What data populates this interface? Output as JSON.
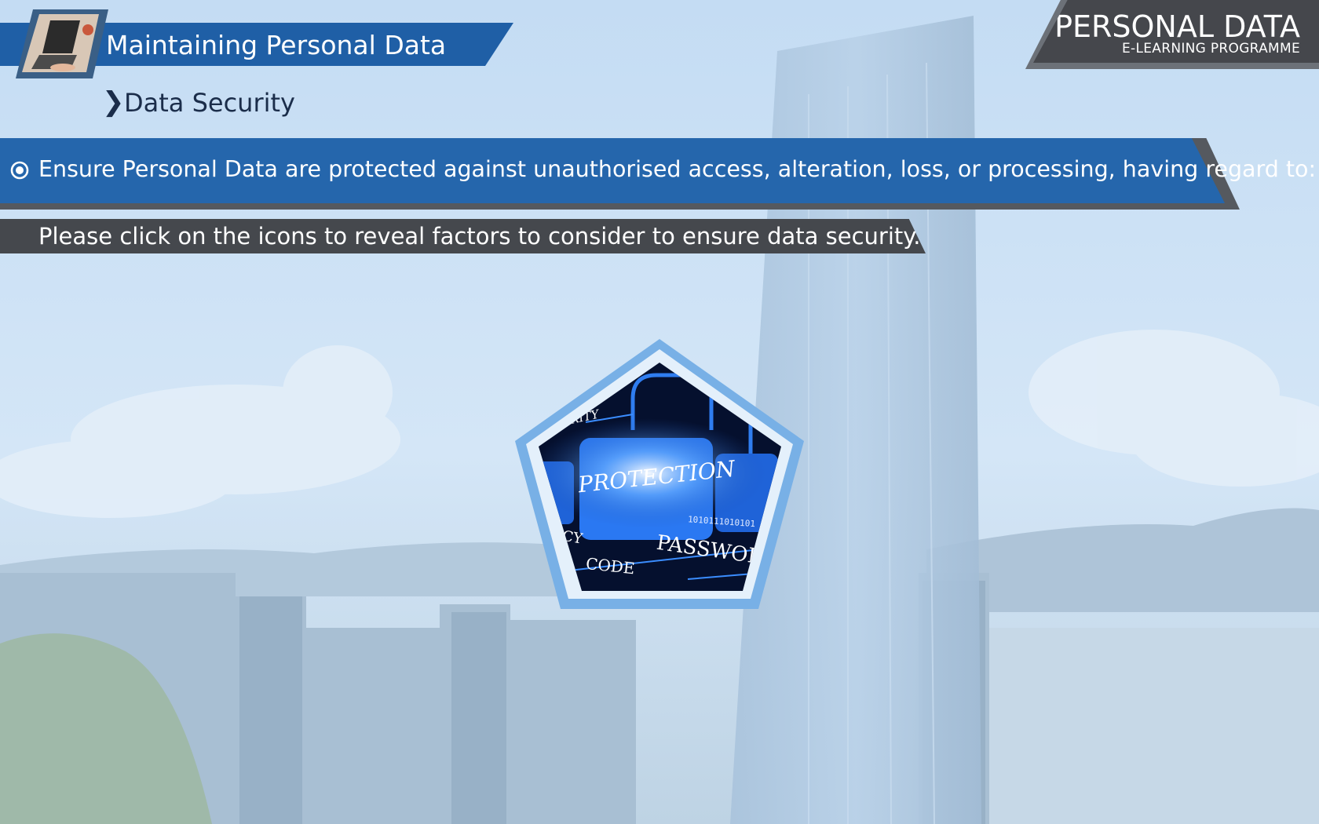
{
  "header": {
    "module_title": "Maintaining Personal Data",
    "section_title": "Data Security"
  },
  "brand": {
    "title": "PERSONAL DATA",
    "subtitle": "E-LEARNING PROGRAMME"
  },
  "content": {
    "principle": "Ensure Personal Data are protected against unauthorised access, alteration, loss, or processing, having regard to:",
    "instruction": "Please click on the icons to reveal factors to consider to ensure data security."
  },
  "icon": {
    "words": [
      "PROTECTION",
      "PASSWOR",
      "CODE",
      "RITY",
      "CY",
      "1010111010101"
    ]
  },
  "colors": {
    "title_banner": "#1f5fa6",
    "principle_bar": "#2566ac",
    "dark_bar": "#45484d",
    "pentagon_border": "#78b0e6"
  }
}
